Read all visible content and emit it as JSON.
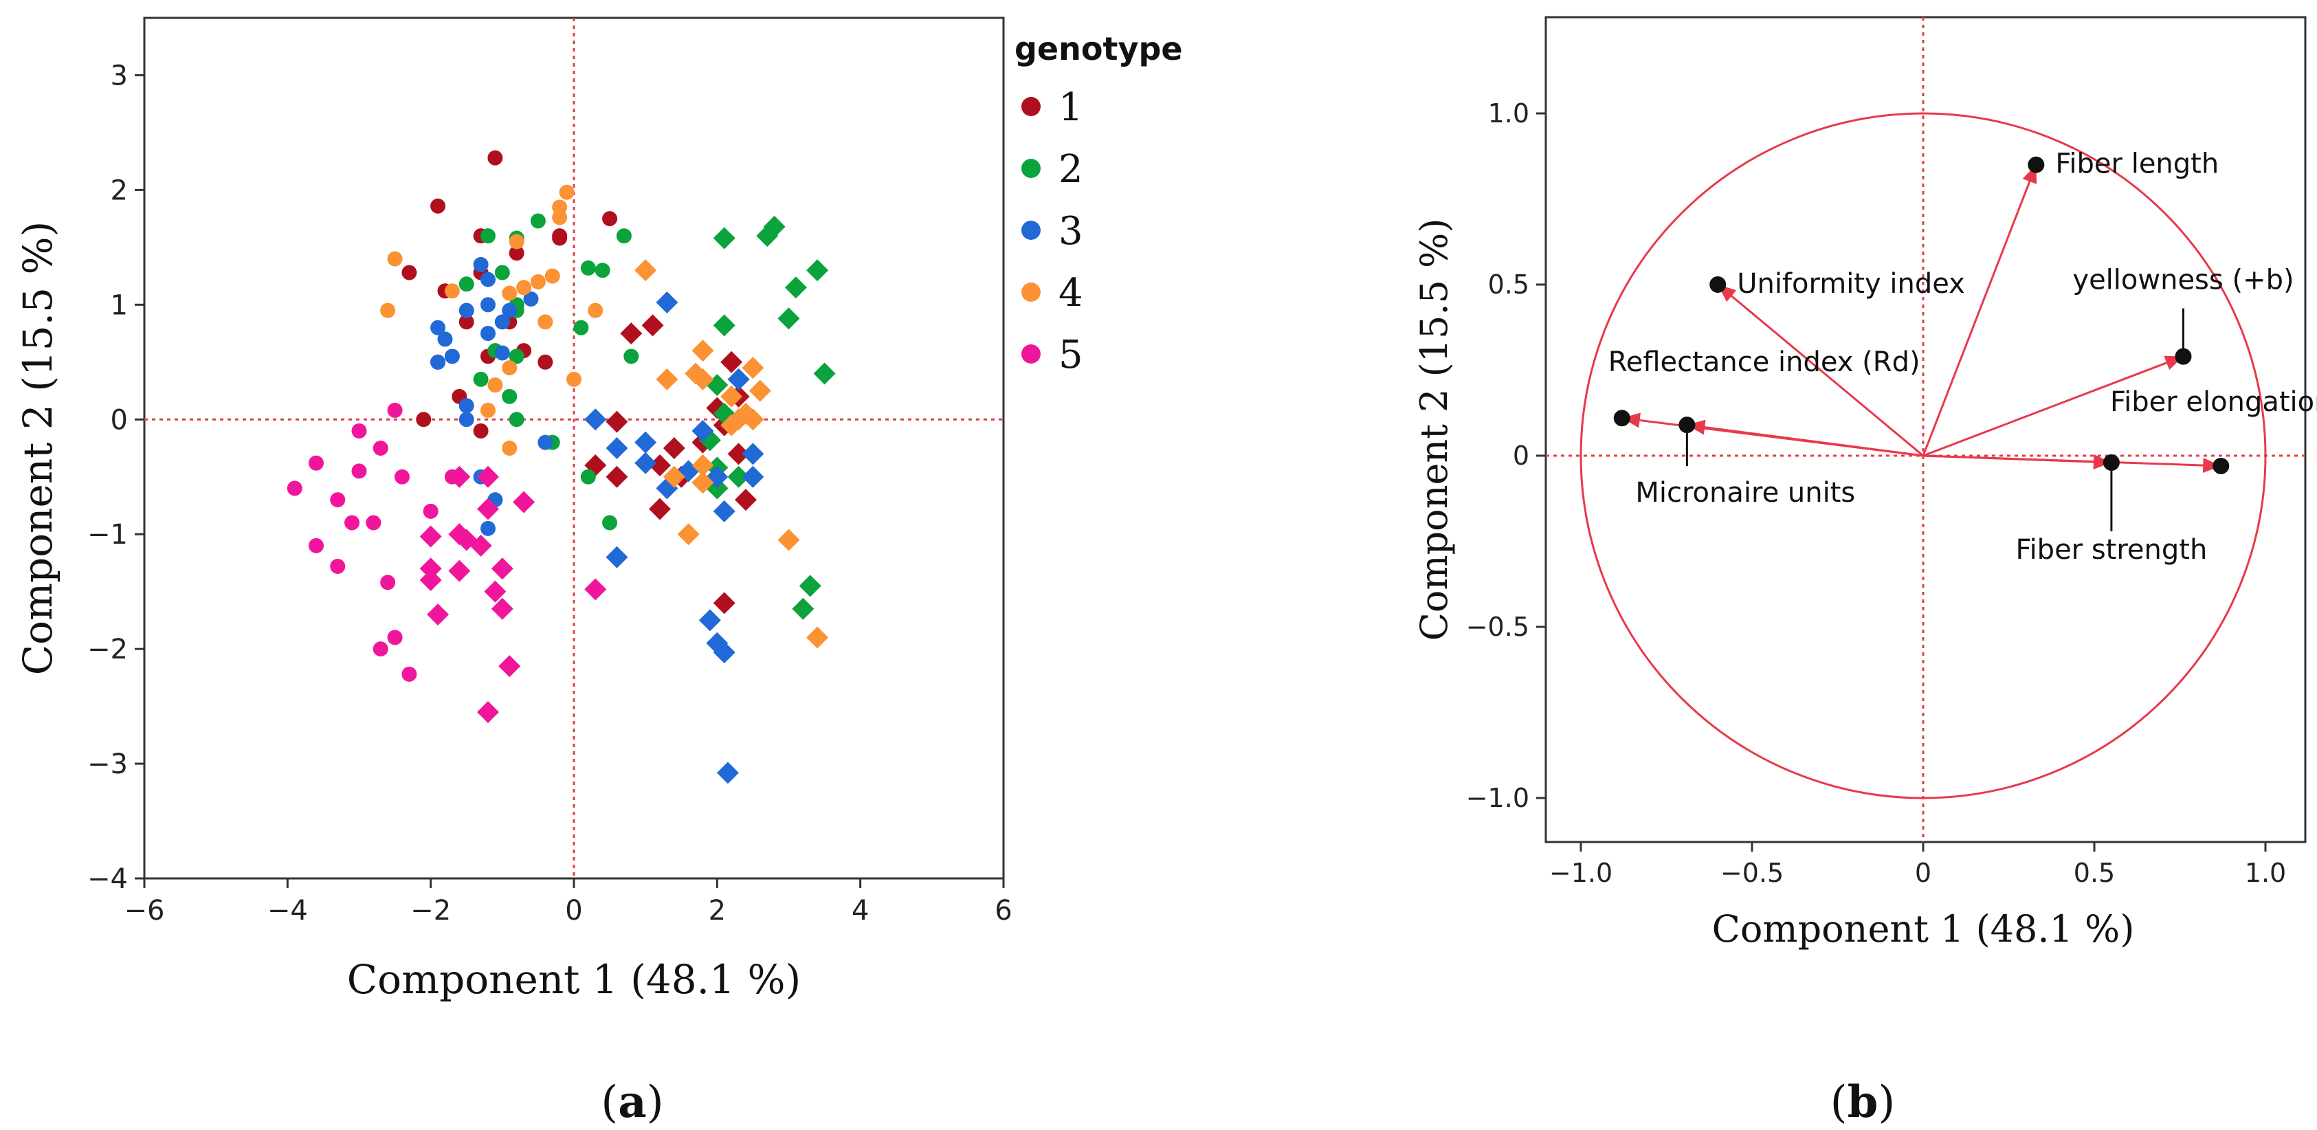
{
  "chart_data": [
    {
      "type": "scatter",
      "panel": "(a)",
      "panel_letter": "a",
      "xlabel": "Component 1  (48.1 %)",
      "ylabel": "Component 2  (15.5 %)",
      "xlim": [
        -6,
        6
      ],
      "ylim": [
        -4,
        3.5
      ],
      "xticks": [
        -6,
        -4,
        -2,
        0,
        2,
        4,
        6
      ],
      "yticks": [
        -4,
        -3,
        -2,
        -1,
        0,
        1,
        2,
        3
      ],
      "reference_lines": {
        "x": 0,
        "y": 0,
        "style": "red dotted"
      },
      "legend": {
        "title": "genotype",
        "position": "right",
        "entries": [
          {
            "label": "1",
            "color": "#b0101e"
          },
          {
            "label": "2",
            "color": "#0aa33c"
          },
          {
            "label": "3",
            "color": "#2169d6"
          },
          {
            "label": "4",
            "color": "#fb9233"
          },
          {
            "label": "5",
            "color": "#f0169c"
          }
        ]
      },
      "marker_shapes": {
        "circle": "circle",
        "diamond": "diamond"
      },
      "series": [
        {
          "name": "1",
          "color": "#b0101e",
          "circle": [
            [
              -1.1,
              2.28
            ],
            [
              -1.9,
              1.86
            ],
            [
              -1.3,
              1.6
            ],
            [
              -2.3,
              1.28
            ],
            [
              -1.8,
              1.12
            ],
            [
              -1.3,
              1.28
            ],
            [
              -0.8,
              1.45
            ],
            [
              -1.5,
              0.85
            ],
            [
              -1.2,
              0.55
            ],
            [
              -1.9,
              0.5
            ],
            [
              -0.2,
              1.6
            ],
            [
              0.5,
              1.75
            ],
            [
              -0.9,
              0.85
            ],
            [
              -1.6,
              0.2
            ],
            [
              -2.1,
              0.0
            ],
            [
              -0.7,
              0.6
            ],
            [
              -1.3,
              -0.1
            ],
            [
              -0.4,
              0.5
            ],
            [
              -0.2,
              1.58
            ]
          ],
          "diamond": [
            [
              0.3,
              -0.4
            ],
            [
              0.6,
              -0.02
            ],
            [
              0.8,
              0.75
            ],
            [
              1.1,
              0.82
            ],
            [
              1.2,
              -0.78
            ],
            [
              1.4,
              -0.25
            ],
            [
              1.5,
              -0.5
            ],
            [
              1.8,
              -0.2
            ],
            [
              2.0,
              0.1
            ],
            [
              2.1,
              -0.05
            ],
            [
              2.2,
              0.5
            ],
            [
              2.3,
              0.2
            ],
            [
              2.4,
              -0.7
            ],
            [
              2.1,
              -1.6
            ],
            [
              0.6,
              -0.5
            ],
            [
              2.0,
              -0.6
            ],
            [
              2.3,
              -0.3
            ],
            [
              1.2,
              -0.4
            ]
          ]
        },
        {
          "name": "2",
          "color": "#0aa33c",
          "circle": [
            [
              -0.5,
              1.73
            ],
            [
              -1.2,
              1.6
            ],
            [
              -1.5,
              1.18
            ],
            [
              -0.8,
              1.58
            ],
            [
              -1.0,
              1.28
            ],
            [
              -0.8,
              1.0
            ],
            [
              -1.1,
              0.6
            ],
            [
              -1.3,
              0.35
            ],
            [
              -0.9,
              0.2
            ],
            [
              0.2,
              1.32
            ],
            [
              0.4,
              1.3
            ],
            [
              0.7,
              1.6
            ],
            [
              0.1,
              0.8
            ],
            [
              -0.8,
              0.95
            ],
            [
              -0.8,
              0.55
            ],
            [
              -0.8,
              0.0
            ],
            [
              0.5,
              -0.9
            ],
            [
              0.2,
              -0.5
            ],
            [
              -0.3,
              -0.2
            ],
            [
              0.8,
              0.55
            ]
          ],
          "diamond": [
            [
              2.1,
              1.58
            ],
            [
              2.7,
              1.6
            ],
            [
              2.8,
              1.68
            ],
            [
              3.4,
              1.3
            ],
            [
              3.5,
              0.4
            ],
            [
              3.0,
              0.88
            ],
            [
              3.1,
              1.15
            ],
            [
              2.1,
              0.82
            ],
            [
              2.3,
              0.35
            ],
            [
              2.0,
              0.3
            ],
            [
              2.3,
              -0.5
            ],
            [
              2.0,
              -0.6
            ],
            [
              1.8,
              -0.55
            ],
            [
              1.9,
              -0.18
            ],
            [
              2.0,
              -0.42
            ],
            [
              3.3,
              -1.45
            ],
            [
              3.2,
              -1.65
            ],
            [
              2.1,
              0.05
            ]
          ]
        },
        {
          "name": "3",
          "color": "#2169d6",
          "circle": [
            [
              -1.3,
              1.35
            ],
            [
              -1.5,
              0.95
            ],
            [
              -1.2,
              1.0
            ],
            [
              -1.9,
              0.8
            ],
            [
              -1.7,
              0.55
            ],
            [
              -1.2,
              1.22
            ],
            [
              -1.0,
              0.85
            ],
            [
              -0.9,
              0.95
            ],
            [
              -1.0,
              0.58
            ],
            [
              -0.6,
              1.05
            ],
            [
              -1.2,
              0.75
            ],
            [
              -1.8,
              0.7
            ],
            [
              -1.5,
              0.12
            ],
            [
              -1.3,
              -0.5
            ],
            [
              -1.1,
              -0.7
            ],
            [
              -1.2,
              -0.95
            ],
            [
              -0.4,
              -0.2
            ],
            [
              -1.9,
              0.5
            ],
            [
              -1.5,
              0.0
            ]
          ],
          "diamond": [
            [
              0.3,
              0.0
            ],
            [
              0.6,
              -0.25
            ],
            [
              1.0,
              -0.38
            ],
            [
              1.3,
              1.02
            ],
            [
              1.3,
              -0.6
            ],
            [
              1.6,
              -0.45
            ],
            [
              1.8,
              -0.1
            ],
            [
              2.0,
              -0.5
            ],
            [
              2.1,
              -0.8
            ],
            [
              2.5,
              -0.3
            ],
            [
              2.3,
              0.35
            ],
            [
              2.5,
              -0.5
            ],
            [
              1.9,
              -1.75
            ],
            [
              2.0,
              -1.95
            ],
            [
              2.1,
              -2.03
            ],
            [
              2.15,
              -3.08
            ],
            [
              0.6,
              -1.2
            ],
            [
              1.0,
              -0.2
            ]
          ]
        },
        {
          "name": "4",
          "color": "#fb9233",
          "circle": [
            [
              -2.5,
              1.4
            ],
            [
              -2.6,
              0.95
            ],
            [
              -1.7,
              1.12
            ],
            [
              -0.5,
              1.2
            ],
            [
              -0.8,
              1.55
            ],
            [
              -0.9,
              1.1
            ],
            [
              -0.3,
              1.25
            ],
            [
              -0.2,
              1.85
            ],
            [
              -0.1,
              1.98
            ],
            [
              0.3,
              0.95
            ],
            [
              -0.4,
              0.85
            ],
            [
              -0.9,
              0.45
            ],
            [
              -1.1,
              0.3
            ],
            [
              0.0,
              0.35
            ],
            [
              -1.2,
              0.08
            ],
            [
              -0.9,
              -0.25
            ],
            [
              -0.2,
              1.76
            ],
            [
              -0.7,
              1.15
            ]
          ],
          "diamond": [
            [
              1.0,
              1.3
            ],
            [
              1.3,
              0.35
            ],
            [
              1.7,
              0.4
            ],
            [
              1.8,
              0.6
            ],
            [
              1.8,
              0.35
            ],
            [
              2.2,
              0.2
            ],
            [
              2.5,
              0.45
            ],
            [
              2.6,
              0.25
            ],
            [
              2.5,
              0.0
            ],
            [
              2.4,
              0.05
            ],
            [
              2.2,
              -0.05
            ],
            [
              1.6,
              -1.0
            ],
            [
              1.4,
              -0.5
            ],
            [
              1.8,
              -0.4
            ],
            [
              3.0,
              -1.05
            ],
            [
              3.4,
              -1.9
            ],
            [
              1.8,
              -0.55
            ],
            [
              2.3,
              0.0
            ]
          ]
        },
        {
          "name": "5",
          "color": "#f0169c",
          "circle": [
            [
              -2.5,
              0.08
            ],
            [
              -2.4,
              -0.5
            ],
            [
              -3.0,
              -0.1
            ],
            [
              -3.6,
              -0.38
            ],
            [
              -3.9,
              -0.6
            ],
            [
              -3.3,
              -0.7
            ],
            [
              -3.6,
              -1.1
            ],
            [
              -3.1,
              -0.9
            ],
            [
              -2.8,
              -0.9
            ],
            [
              -3.3,
              -1.28
            ],
            [
              -2.6,
              -1.42
            ],
            [
              -2.5,
              -1.9
            ],
            [
              -2.3,
              -2.22
            ],
            [
              -2.7,
              -2.0
            ],
            [
              -2.7,
              -0.25
            ],
            [
              -3.0,
              -0.45
            ],
            [
              -2.0,
              -0.8
            ],
            [
              -1.7,
              -0.5
            ]
          ],
          "diamond": [
            [
              -2.0,
              -1.02
            ],
            [
              -1.6,
              -1.0
            ],
            [
              -1.5,
              -1.05
            ],
            [
              -1.3,
              -1.1
            ],
            [
              -1.2,
              -0.78
            ],
            [
              -0.7,
              -0.72
            ],
            [
              -2.0,
              -1.3
            ],
            [
              -1.0,
              -1.3
            ],
            [
              -1.1,
              -1.5
            ],
            [
              -1.9,
              -1.7
            ],
            [
              -1.0,
              -1.65
            ],
            [
              -0.9,
              -2.15
            ],
            [
              -1.2,
              -2.55
            ],
            [
              -1.6,
              -1.32
            ],
            [
              -1.2,
              -0.5
            ],
            [
              -1.6,
              -0.5
            ],
            [
              0.3,
              -1.48
            ],
            [
              -2.0,
              -1.4
            ]
          ]
        }
      ]
    },
    {
      "type": "biplot",
      "panel": "(b)",
      "panel_letter": "b",
      "xlabel": "Component 1  (48.1 %)",
      "ylabel": "Component 2  (15.5 %)",
      "xlim": [
        -1.1,
        1.1
      ],
      "ylim": [
        -1.1,
        1.1
      ],
      "xticks": [
        -1.0,
        -0.5,
        0,
        0.5,
        1.0
      ],
      "xtick_labels": [
        "-1.0",
        "-0.5",
        "0",
        "0.5",
        "1.0"
      ],
      "yticks": [
        -1.0,
        -0.5,
        0,
        0.5,
        1.0
      ],
      "ytick_labels": [
        "-1.0",
        "-0.5",
        "0",
        "0.5",
        "1.0"
      ],
      "circle_radius": 1.0,
      "reference_lines": {
        "x": 0,
        "y": 0,
        "style": "red dotted"
      },
      "loadings": [
        {
          "label": "Fiber length",
          "x": 0.33,
          "y": 0.85
        },
        {
          "label": "Uniformity index",
          "x": -0.6,
          "y": 0.5
        },
        {
          "label": "yellowness (+b)",
          "x": 0.76,
          "y": 0.29
        },
        {
          "label": "Reflectance index (Rd)",
          "x": -0.88,
          "y": 0.11
        },
        {
          "label": "Micronaire units",
          "x": -0.69,
          "y": 0.09
        },
        {
          "label": "Fiber elongation",
          "x": 0.87,
          "y": -0.03
        },
        {
          "label": "Fiber strength",
          "x": 0.55,
          "y": -0.02
        }
      ]
    }
  ]
}
